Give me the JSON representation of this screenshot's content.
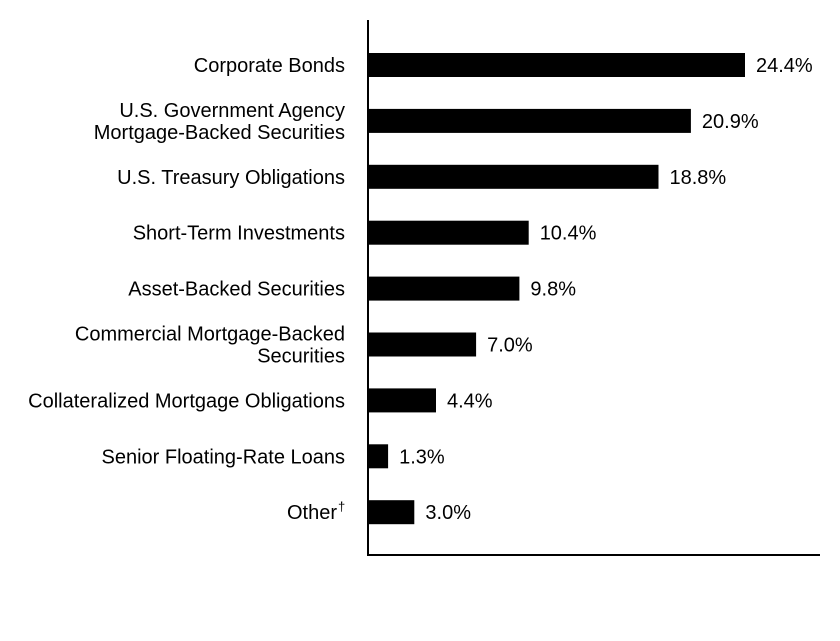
{
  "chart_data": {
    "type": "bar",
    "orientation": "horizontal",
    "title": "",
    "xlabel": "",
    "ylabel": "",
    "grid": false,
    "bar_color": "#000000",
    "categories": [
      {
        "label_lines": [
          "Corporate Bonds"
        ],
        "sup": ""
      },
      {
        "label_lines": [
          "U.S. Government Agency",
          "Mortgage-Backed Securities"
        ],
        "sup": ""
      },
      {
        "label_lines": [
          "U.S. Treasury Obligations"
        ],
        "sup": ""
      },
      {
        "label_lines": [
          "Short-Term Investments"
        ],
        "sup": ""
      },
      {
        "label_lines": [
          "Asset-Backed Securities"
        ],
        "sup": ""
      },
      {
        "label_lines": [
          "Commercial Mortgage-Backed",
          "Securities"
        ],
        "sup": ""
      },
      {
        "label_lines": [
          "Collateralized Mortgage Obligations"
        ],
        "sup": ""
      },
      {
        "label_lines": [
          "Senior Floating-Rate Loans"
        ],
        "sup": ""
      },
      {
        "label_lines": [
          "Other"
        ],
        "sup": "†"
      }
    ],
    "values": [
      24.4,
      20.9,
      18.8,
      10.4,
      9.8,
      7.0,
      4.4,
      1.3,
      3.0
    ],
    "value_labels": [
      "24.4%",
      "20.9%",
      "18.8%",
      "10.4%",
      "9.8%",
      "7.0%",
      "4.4%",
      "1.3%",
      "3.0%"
    ],
    "unit": "%"
  }
}
